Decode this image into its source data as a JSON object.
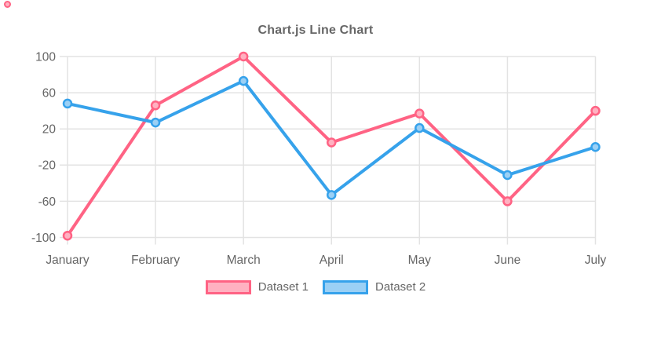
{
  "chart_data": {
    "type": "line",
    "title": "Chart.js Line Chart",
    "categories": [
      "January",
      "February",
      "March",
      "April",
      "May",
      "June",
      "July"
    ],
    "series": [
      {
        "name": "Dataset 1",
        "color": "#ff6384",
        "fill_color": "#ffb1c1",
        "values": [
          -98,
          46,
          100,
          5,
          37,
          -60,
          40
        ]
      },
      {
        "name": "Dataset 2",
        "color": "#36a2eb",
        "fill_color": "#9bd0f5",
        "values": [
          48,
          27,
          73,
          -53,
          21,
          -31,
          0
        ]
      }
    ],
    "yticks": [
      100,
      60,
      20,
      -20,
      -60,
      -100
    ],
    "ylim": [
      -100,
      100
    ],
    "xlabel": "",
    "ylabel": "",
    "grid": true,
    "legend_position": "bottom",
    "colors": {
      "grid": "#e3e3e3",
      "tick_text": "#666666",
      "title_text": "#666666",
      "legend_text": "#666666",
      "background": "#ffffff"
    }
  }
}
